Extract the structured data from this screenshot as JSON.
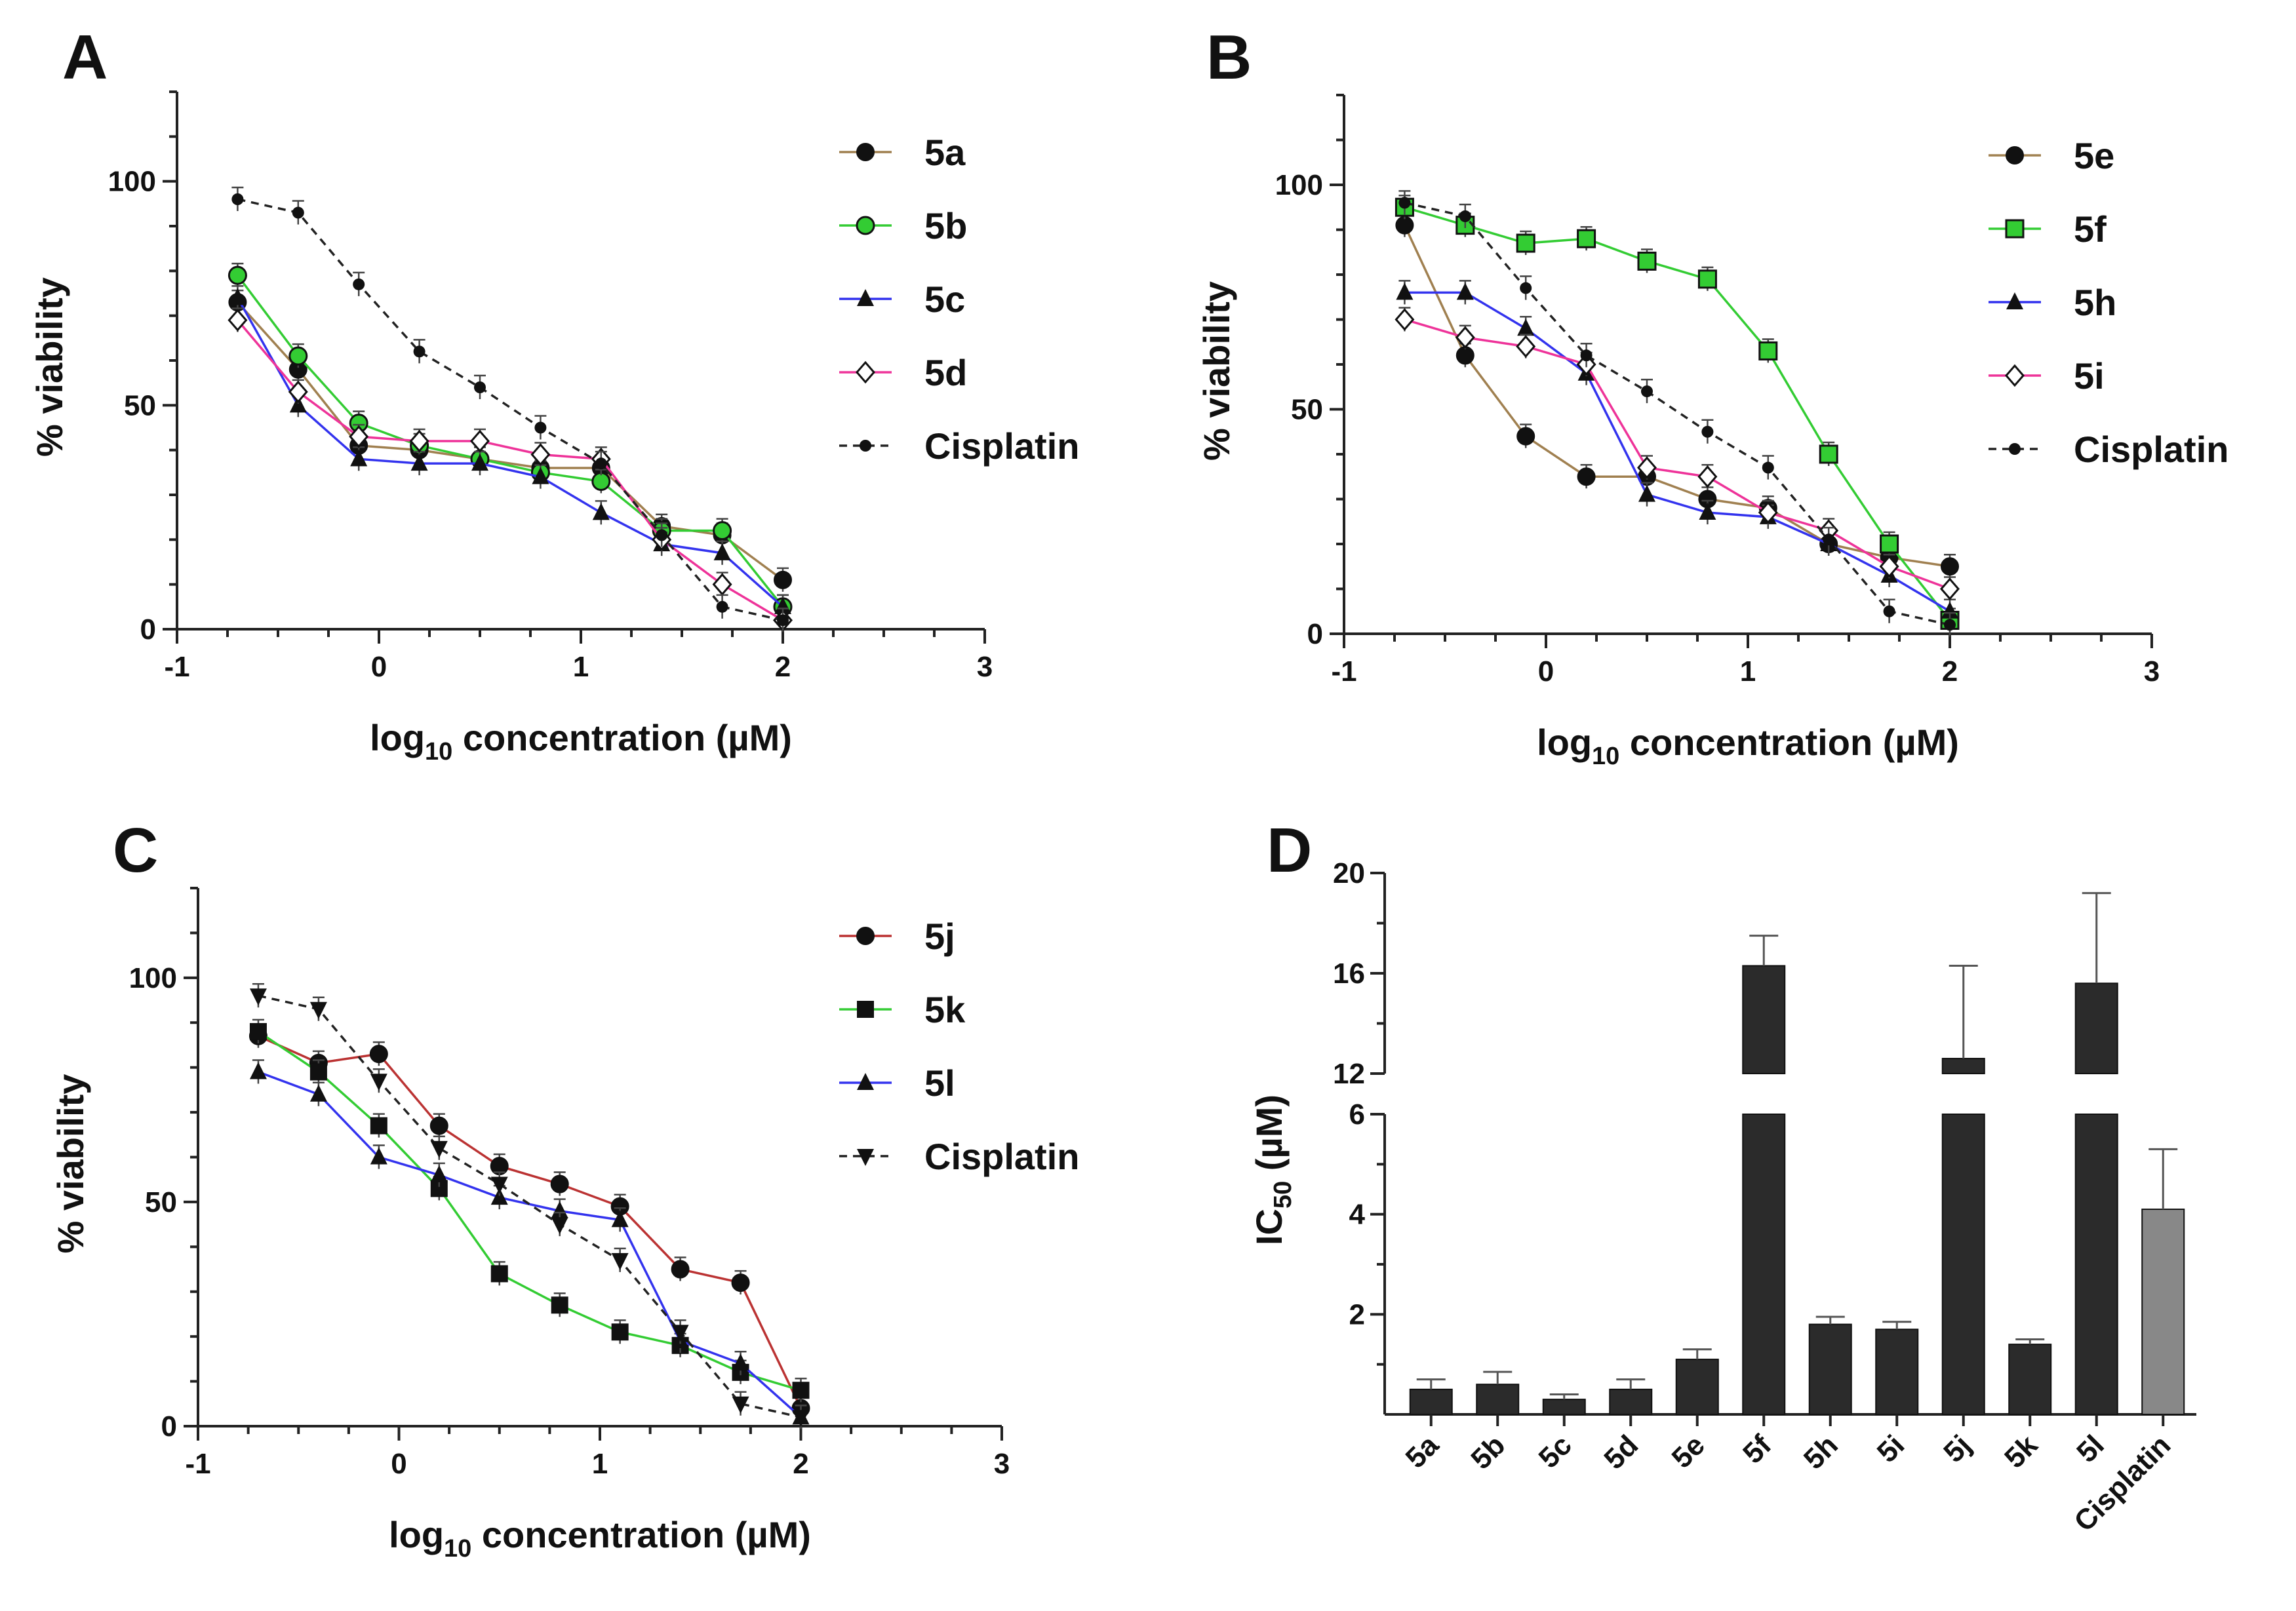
{
  "chart_data": [
    {
      "panel": "A",
      "type": "line",
      "xlabel_main": "log",
      "xlabel_sub": "10",
      "xlabel_rest": " concentration (µM)",
      "ylabel": "% viability",
      "xlim": [
        -1,
        3
      ],
      "ylim": [
        0,
        120
      ],
      "xticks": [
        -1,
        0,
        1,
        2,
        3
      ],
      "yticks": [
        0,
        50,
        100
      ],
      "x": [
        -0.7,
        -0.4,
        -0.1,
        0.2,
        0.5,
        0.8,
        1.1,
        1.4,
        1.7,
        2.0
      ],
      "series": [
        {
          "name": "5a",
          "color": "#a08050",
          "marker": "circle",
          "dashed": false,
          "values": [
            73,
            58,
            41,
            40,
            38,
            36,
            36,
            23,
            21,
            11
          ]
        },
        {
          "name": "5b",
          "color": "#33cc33",
          "marker": "circle-open",
          "dashed": false,
          "values": [
            79,
            61,
            46,
            41,
            38,
            35,
            33,
            22,
            22,
            5
          ]
        },
        {
          "name": "5c",
          "color": "#3333ee",
          "marker": "triangle",
          "dashed": false,
          "values": [
            74,
            50,
            38,
            37,
            37,
            34,
            26,
            19,
            17,
            5
          ]
        },
        {
          "name": "5d",
          "color": "#ee3399",
          "marker": "diamond-open",
          "dashed": false,
          "values": [
            69,
            53,
            43,
            42,
            42,
            39,
            38,
            20,
            10,
            2
          ]
        },
        {
          "name": "Cisplatin",
          "color": "#222222",
          "marker": "dot",
          "dashed": true,
          "values": [
            96,
            93,
            77,
            62,
            54,
            45,
            37,
            21,
            5,
            2
          ]
        }
      ]
    },
    {
      "panel": "B",
      "type": "line",
      "xlabel_main": "log",
      "xlabel_sub": "10",
      "xlabel_rest": " concentration (µM)",
      "ylabel": "% viability",
      "xlim": [
        -1,
        3
      ],
      "ylim": [
        0,
        120
      ],
      "xticks": [
        -1,
        0,
        1,
        2,
        3
      ],
      "yticks": [
        0,
        50,
        100
      ],
      "x": [
        -0.7,
        -0.4,
        -0.1,
        0.2,
        0.5,
        0.8,
        1.1,
        1.4,
        1.7,
        2.0
      ],
      "series": [
        {
          "name": "5e",
          "color": "#a08050",
          "marker": "circle",
          "dashed": false,
          "values": [
            91,
            62,
            44,
            35,
            35,
            30,
            28,
            20,
            17,
            15
          ]
        },
        {
          "name": "5f",
          "color": "#33cc33",
          "marker": "square-green",
          "dashed": false,
          "values": [
            95,
            91,
            87,
            88,
            83,
            79,
            63,
            40,
            20,
            3
          ]
        },
        {
          "name": "5h",
          "color": "#3333ee",
          "marker": "triangle",
          "dashed": false,
          "values": [
            76,
            76,
            68,
            58,
            31,
            27,
            26,
            20,
            13,
            5
          ]
        },
        {
          "name": "5i",
          "color": "#ee3399",
          "marker": "diamond-open",
          "dashed": false,
          "values": [
            70,
            66,
            64,
            60,
            37,
            35,
            27,
            23,
            15,
            10
          ]
        },
        {
          "name": "Cisplatin",
          "color": "#222222",
          "marker": "dot",
          "dashed": true,
          "values": [
            96,
            93,
            77,
            62,
            54,
            45,
            37,
            21,
            5,
            2
          ]
        }
      ]
    },
    {
      "panel": "C",
      "type": "line",
      "xlabel_main": "log",
      "xlabel_sub": "10",
      "xlabel_rest": " concentration (µM)",
      "ylabel": "% viability",
      "xlim": [
        -1,
        3
      ],
      "ylim": [
        0,
        120
      ],
      "xticks": [
        -1,
        0,
        1,
        2,
        3
      ],
      "yticks": [
        0,
        50,
        100
      ],
      "x": [
        -0.7,
        -0.4,
        -0.1,
        0.2,
        0.5,
        0.8,
        1.1,
        1.4,
        1.7,
        2.0
      ],
      "series": [
        {
          "name": "5j",
          "color": "#bb3333",
          "marker": "circle",
          "dashed": false,
          "values": [
            87,
            81,
            83,
            67,
            58,
            54,
            49,
            35,
            32,
            4
          ]
        },
        {
          "name": "5k",
          "color": "#33cc33",
          "marker": "square",
          "dashed": false,
          "values": [
            88,
            79,
            67,
            53,
            34,
            27,
            21,
            18,
            12,
            8
          ]
        },
        {
          "name": "5l",
          "color": "#3333ee",
          "marker": "triangle",
          "dashed": false,
          "values": [
            79,
            74,
            60,
            56,
            51,
            48,
            46,
            19,
            14,
            2
          ]
        },
        {
          "name": "Cisplatin",
          "color": "#222222",
          "marker": "triangle-down",
          "dashed": true,
          "values": [
            96,
            93,
            77,
            62,
            54,
            45,
            37,
            21,
            5,
            2
          ]
        }
      ]
    },
    {
      "panel": "D",
      "type": "bar",
      "ylabel_main": "IC",
      "ylabel_sub": "50",
      "ylabel_rest": " (µM)",
      "broken_axis": {
        "lower": [
          0,
          6
        ],
        "upper": [
          12,
          20
        ]
      },
      "yticks_lower": [
        2,
        4,
        6
      ],
      "yticks_upper": [
        12,
        16,
        20
      ],
      "categories": [
        "5a",
        "5b",
        "5c",
        "5d",
        "5e",
        "5f",
        "5h",
        "5i",
        "5j",
        "5k",
        "5l",
        "Cisplatin"
      ],
      "values": [
        0.5,
        0.6,
        0.3,
        0.5,
        1.1,
        16.3,
        1.8,
        1.7,
        12.6,
        1.4,
        15.6,
        4.1
      ],
      "errors": [
        0.2,
        0.25,
        0.1,
        0.2,
        0.2,
        1.2,
        0.15,
        0.15,
        3.7,
        0.1,
        3.6,
        1.2
      ],
      "colors": [
        "#2b2b2b",
        "#2b2b2b",
        "#2b2b2b",
        "#2b2b2b",
        "#2b2b2b",
        "#2b2b2b",
        "#2b2b2b",
        "#2b2b2b",
        "#2b2b2b",
        "#2b2b2b",
        "#2b2b2b",
        "#888888"
      ]
    }
  ]
}
